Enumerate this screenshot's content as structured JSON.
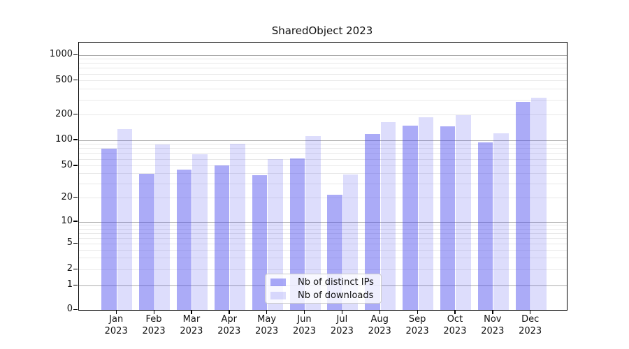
{
  "title": "SharedObject 2023",
  "chart_data": {
    "type": "bar",
    "title": "SharedObject 2023",
    "categories": [
      "Jan 2023",
      "Feb 2023",
      "Mar 2023",
      "Apr 2023",
      "May 2023",
      "Jun 2023",
      "Jul 2023",
      "Aug 2023",
      "Sep 2023",
      "Oct 2023",
      "Nov 2023",
      "Dec 2023"
    ],
    "series": [
      {
        "name": "Nb of distinct IPs",
        "color": "#4545ee",
        "alpha": 0.45,
        "values": [
          80,
          40,
          45,
          51,
          38,
          61,
          22,
          119,
          150,
          146,
          95,
          284
        ]
      },
      {
        "name": "Nb of downloads",
        "color": "#4545ee",
        "alpha": 0.18,
        "values": [
          135,
          89,
          68,
          91,
          60,
          113,
          39,
          165,
          187,
          200,
          120,
          316
        ]
      }
    ],
    "xlabel": "",
    "ylabel": "",
    "yscale": "symlog",
    "ylim": [
      0,
      1400
    ],
    "y_tick_labels": [
      "0",
      "1",
      "2",
      "5",
      "10",
      "20",
      "50",
      "100",
      "200",
      "500",
      "1000"
    ],
    "grid": true,
    "legend_position": "lower center"
  },
  "colors": {
    "grid_major": "#ababab",
    "grid_minor": "#e9e9e9",
    "axis": "#000000",
    "text": "#111111",
    "legend_border": "#cccccc"
  }
}
